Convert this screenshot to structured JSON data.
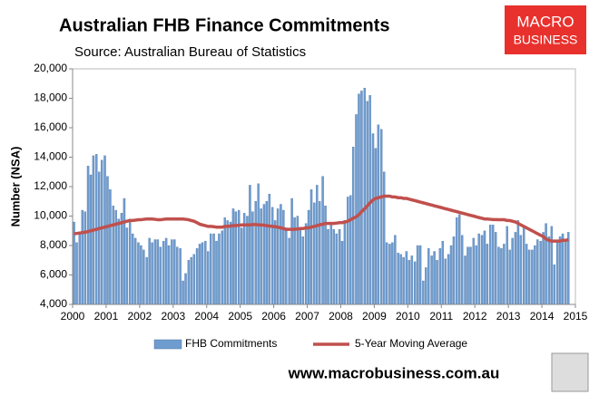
{
  "chart_data": {
    "type": "bar-line",
    "title": "Australian FHB Finance Commitments",
    "subtitle": "Source: Australian Bureau of Statistics",
    "y_label": "Number (NSA)",
    "logo_text": [
      "MACRO",
      "BUSINESS"
    ],
    "footer": "www.macrobusiness.com.au",
    "xlim": [
      2000,
      2015
    ],
    "xticks": [
      2000,
      2001,
      2002,
      2003,
      2004,
      2005,
      2006,
      2007,
      2008,
      2009,
      2010,
      2011,
      2012,
      2013,
      2014,
      2015
    ],
    "ylim": [
      4000,
      20000
    ],
    "yticks": [
      {
        "value": 4000,
        "label": "4,000"
      },
      {
        "value": 6000,
        "label": "6,000"
      },
      {
        "value": 8000,
        "label": "8,000"
      },
      {
        "value": 10000,
        "label": "10,000"
      },
      {
        "value": 12000,
        "label": "12,000"
      },
      {
        "value": 14000,
        "label": "14,000"
      },
      {
        "value": 16000,
        "label": "16,000"
      },
      {
        "value": 18000,
        "label": "18,000"
      },
      {
        "value": 20000,
        "label": "20,000"
      }
    ],
    "grid": false,
    "x": [
      2000,
      2000.08,
      2000.17,
      2000.25,
      2000.33,
      2000.42,
      2000.5,
      2000.58,
      2000.67,
      2000.75,
      2000.83,
      2000.92,
      2001,
      2001.08,
      2001.17,
      2001.25,
      2001.33,
      2001.42,
      2001.5,
      2001.58,
      2001.67,
      2001.75,
      2001.83,
      2001.92,
      2002,
      2002.08,
      2002.17,
      2002.25,
      2002.33,
      2002.42,
      2002.5,
      2002.58,
      2002.67,
      2002.75,
      2002.83,
      2002.92,
      2003,
      2003.08,
      2003.17,
      2003.25,
      2003.33,
      2003.42,
      2003.5,
      2003.58,
      2003.67,
      2003.75,
      2003.83,
      2003.92,
      2004,
      2004.08,
      2004.17,
      2004.25,
      2004.33,
      2004.42,
      2004.5,
      2004.58,
      2004.67,
      2004.75,
      2004.83,
      2004.92,
      2005,
      2005.08,
      2005.17,
      2005.25,
      2005.33,
      2005.42,
      2005.5,
      2005.58,
      2005.67,
      2005.75,
      2005.83,
      2005.92,
      2006,
      2006.08,
      2006.17,
      2006.25,
      2006.33,
      2006.42,
      2006.5,
      2006.58,
      2006.67,
      2006.75,
      2006.83,
      2006.92,
      2007,
      2007.08,
      2007.17,
      2007.25,
      2007.33,
      2007.42,
      2007.5,
      2007.58,
      2007.67,
      2007.75,
      2007.83,
      2007.92,
      2008,
      2008.08,
      2008.17,
      2008.25,
      2008.33,
      2008.42,
      2008.5,
      2008.58,
      2008.67,
      2008.75,
      2008.83,
      2008.92,
      2009,
      2009.08,
      2009.17,
      2009.25,
      2009.33,
      2009.42,
      2009.5,
      2009.58,
      2009.67,
      2009.75,
      2009.83,
      2009.92,
      2010,
      2010.08,
      2010.17,
      2010.25,
      2010.33,
      2010.42,
      2010.5,
      2010.58,
      2010.67,
      2010.75,
      2010.83,
      2010.92,
      2011,
      2011.08,
      2011.17,
      2011.25,
      2011.33,
      2011.42,
      2011.5,
      2011.58,
      2011.67,
      2011.75,
      2011.83,
      2011.92,
      2012,
      2012.08,
      2012.17,
      2012.25,
      2012.33,
      2012.42,
      2012.5,
      2012.58,
      2012.67,
      2012.75,
      2012.83,
      2012.92,
      2013,
      2013.08,
      2013.17,
      2013.25,
      2013.33,
      2013.42,
      2013.5,
      2013.58,
      2013.67,
      2013.75,
      2013.83,
      2013.92,
      2014,
      2014.08,
      2014.17,
      2014.25,
      2014.33,
      2014.42,
      2014.5,
      2014.58,
      2014.67,
      2014.75
    ],
    "series": [
      {
        "name": "FHB Commitments",
        "kind": "bar",
        "color": "#6f9ccf",
        "values": [
          9600,
          8200,
          8900,
          10400,
          10300,
          13400,
          12800,
          14100,
          14200,
          13000,
          13800,
          14100,
          12700,
          11800,
          10700,
          10400,
          9800,
          10200,
          11200,
          9200,
          9800,
          8800,
          8500,
          8200,
          8000,
          7700,
          7200,
          8500,
          8200,
          8400,
          8400,
          7900,
          8300,
          8500,
          8000,
          8400,
          8400,
          7900,
          7800,
          5600,
          6100,
          7000,
          7200,
          7400,
          7800,
          8100,
          8200,
          8300,
          7600,
          8800,
          8800,
          8300,
          8800,
          9000,
          9900,
          9700,
          9600,
          10500,
          10300,
          10400,
          9200,
          10200,
          10000,
          12100,
          10300,
          11000,
          12200,
          10500,
          10800,
          11000,
          11500,
          10600,
          9700,
          10500,
          10800,
          10400,
          9200,
          8500,
          11200,
          9900,
          10000,
          9100,
          8600,
          9500,
          10400,
          11800,
          10900,
          12100,
          11000,
          12700,
          10700,
          9100,
          9500,
          9100,
          8800,
          9100,
          8300,
          9700,
          11300,
          11400,
          14700,
          16900,
          18300,
          18500,
          18700,
          17800,
          18200,
          15600,
          14600,
          16200,
          15900,
          13000,
          8200,
          8100,
          8200,
          8700,
          7500,
          7400,
          7200,
          7600,
          7000,
          7300,
          6900,
          8000,
          8000,
          5600,
          6500,
          7800,
          7300,
          7600,
          7000,
          7800,
          8300,
          7100,
          7400,
          8000,
          8600,
          9900,
          10100,
          8700,
          7300,
          7900,
          7900,
          8500,
          8000,
          8800,
          8700,
          9000,
          8100,
          9400,
          9400,
          8900,
          7900,
          7800,
          8100,
          9300,
          7700,
          8500,
          8900,
          9700,
          8700,
          9300,
          8100,
          7700,
          7700,
          8000,
          8400,
          8300,
          8900,
          9500,
          8600,
          9300,
          6700,
          8300,
          8600,
          8800,
          8400,
          8900
        ]
      },
      {
        "name": "5-Year Moving Average",
        "kind": "line",
        "color": "#c0504d",
        "values": [
          8800,
          8820,
          8850,
          8880,
          8900,
          8950,
          9000,
          9050,
          9100,
          9150,
          9200,
          9250,
          9300,
          9350,
          9400,
          9450,
          9500,
          9550,
          9600,
          9650,
          9700,
          9700,
          9720,
          9750,
          9750,
          9780,
          9800,
          9800,
          9800,
          9780,
          9750,
          9750,
          9780,
          9800,
          9800,
          9800,
          9800,
          9800,
          9800,
          9800,
          9780,
          9750,
          9700,
          9650,
          9550,
          9450,
          9400,
          9350,
          9300,
          9300,
          9280,
          9250,
          9250,
          9250,
          9300,
          9300,
          9320,
          9350,
          9350,
          9380,
          9400,
          9400,
          9400,
          9400,
          9420,
          9420,
          9400,
          9400,
          9380,
          9350,
          9320,
          9300,
          9280,
          9250,
          9200,
          9150,
          9100,
          9100,
          9100,
          9100,
          9120,
          9150,
          9150,
          9200,
          9200,
          9250,
          9300,
          9350,
          9400,
          9450,
          9500,
          9500,
          9500,
          9500,
          9520,
          9550,
          9550,
          9600,
          9650,
          9750,
          9850,
          9950,
          10100,
          10300,
          10500,
          10700,
          10900,
          11100,
          11200,
          11250,
          11300,
          11350,
          11350,
          11350,
          11300,
          11300,
          11250,
          11250,
          11200,
          11200,
          11150,
          11100,
          11050,
          11000,
          10950,
          10900,
          10850,
          10800,
          10750,
          10700,
          10650,
          10600,
          10550,
          10500,
          10450,
          10400,
          10350,
          10300,
          10250,
          10200,
          10150,
          10100,
          10050,
          10000,
          9950,
          9900,
          9850,
          9800,
          9800,
          9780,
          9760,
          9760,
          9750,
          9750,
          9750,
          9700,
          9700,
          9650,
          9600,
          9500,
          9400,
          9300,
          9200,
          9100,
          9000,
          8900,
          8800,
          8700,
          8600,
          8450,
          8350,
          8300,
          8300,
          8300,
          8300,
          8350,
          8350,
          8400
        ]
      }
    ]
  }
}
